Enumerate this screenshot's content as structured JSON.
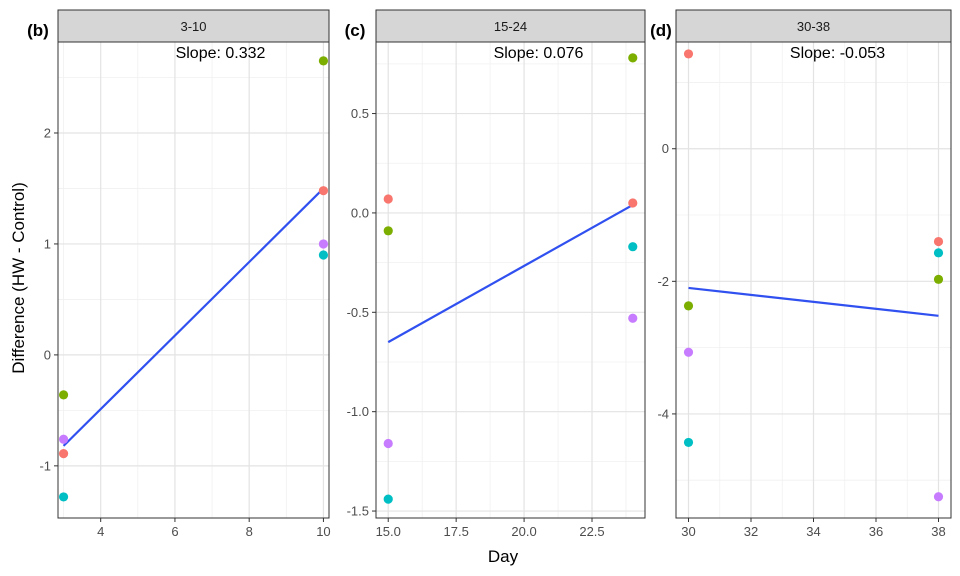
{
  "ylabel": "Difference (HW - Control)",
  "xlabel": "Day",
  "chart_data": [
    {
      "type": "scatter",
      "tag": "(b)",
      "strip": "3-10",
      "annotation": "Slope: 0.332",
      "xlim": [
        2.85,
        10.15
      ],
      "ylim": [
        -1.47,
        2.82
      ],
      "xticks": [
        4,
        6,
        8,
        10
      ],
      "xtick_labels": [
        "4",
        "6",
        "8",
        "10"
      ],
      "yticks": [
        -1,
        0,
        1,
        2
      ],
      "ytick_labels": [
        "-1",
        "0",
        "1",
        "2"
      ],
      "series": [
        {
          "color": "#F8766D",
          "x": [
            3,
            10
          ],
          "y": [
            -0.89,
            1.48
          ]
        },
        {
          "color": "#7CAE00",
          "x": [
            3,
            10
          ],
          "y": [
            -0.36,
            2.65
          ]
        },
        {
          "color": "#00BFC4",
          "x": [
            3,
            10
          ],
          "y": [
            -1.28,
            0.9
          ]
        },
        {
          "color": "#C77CFF",
          "x": [
            3,
            10
          ],
          "y": [
            -0.76,
            1.0
          ]
        }
      ],
      "fit": {
        "color": "#3050F0",
        "x": [
          3,
          10
        ],
        "y": [
          -0.82,
          1.5
        ]
      }
    },
    {
      "type": "scatter",
      "tag": "(c)",
      "strip": "15-24",
      "annotation": "Slope: 0.076",
      "xlim": [
        14.55,
        24.45
      ],
      "ylim": [
        -1.535,
        0.86
      ],
      "xticks": [
        15,
        17.5,
        20,
        22.5
      ],
      "xtick_labels": [
        "15.0",
        "17.5",
        "20.0",
        "22.5"
      ],
      "yticks": [
        -1.5,
        -1.0,
        -0.5,
        0.0,
        0.5
      ],
      "ytick_labels": [
        "-1.5",
        "-1.0",
        "-0.5",
        "0.0",
        "0.5"
      ],
      "series": [
        {
          "color": "#F8766D",
          "x": [
            15,
            24
          ],
          "y": [
            0.07,
            0.05
          ]
        },
        {
          "color": "#7CAE00",
          "x": [
            15,
            24
          ],
          "y": [
            -0.09,
            0.78
          ]
        },
        {
          "color": "#00BFC4",
          "x": [
            15,
            24
          ],
          "y": [
            -1.44,
            -0.17
          ]
        },
        {
          "color": "#C77CFF",
          "x": [
            15,
            24
          ],
          "y": [
            -1.16,
            -0.53
          ]
        }
      ],
      "fit": {
        "color": "#3050F0",
        "x": [
          15,
          24
        ],
        "y": [
          -0.65,
          0.04
        ]
      }
    },
    {
      "type": "scatter",
      "tag": "(d)",
      "strip": "30-38",
      "annotation": "Slope: -0.053",
      "xlim": [
        29.6,
        38.4
      ],
      "ylim": [
        -5.57,
        1.61
      ],
      "xticks": [
        30,
        32,
        34,
        36,
        38
      ],
      "xtick_labels": [
        "30",
        "32",
        "34",
        "36",
        "38"
      ],
      "yticks": [
        -4,
        -2,
        0
      ],
      "ytick_labels": [
        "-4",
        "-2",
        "0"
      ],
      "series": [
        {
          "color": "#F8766D",
          "x": [
            30,
            38
          ],
          "y": [
            1.43,
            -1.4
          ]
        },
        {
          "color": "#7CAE00",
          "x": [
            30,
            38
          ],
          "y": [
            -2.37,
            -1.97
          ]
        },
        {
          "color": "#00BFC4",
          "x": [
            30,
            38
          ],
          "y": [
            -4.43,
            -1.57
          ]
        },
        {
          "color": "#C77CFF",
          "x": [
            30,
            38
          ],
          "y": [
            -3.07,
            -5.25
          ]
        }
      ],
      "fit": {
        "color": "#3050F0",
        "x": [
          30,
          38
        ],
        "y": [
          -2.1,
          -2.52
        ]
      }
    }
  ]
}
